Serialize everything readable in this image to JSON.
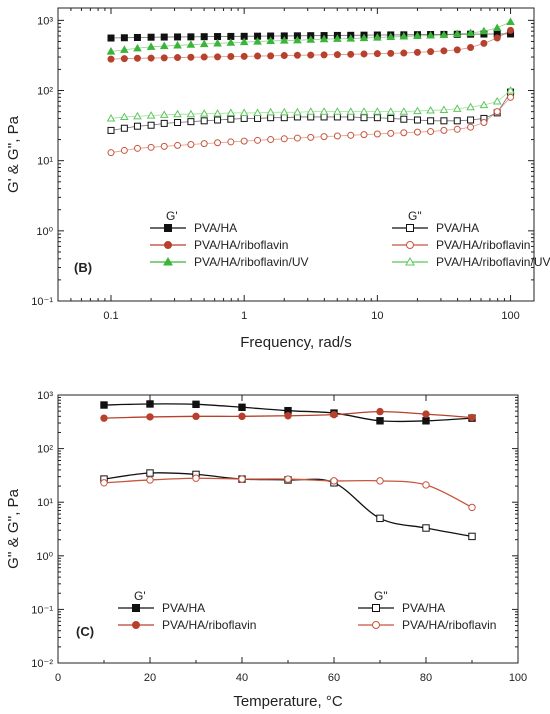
{
  "chart_data": [
    {
      "type": "scatter",
      "panel_label": "(B)",
      "xlabel": "Frequency, rad/s",
      "ylabel": "G' & G'', Pa",
      "xscale": "log",
      "yscale": "log",
      "xlim": [
        0.04,
        150
      ],
      "ylim": [
        0.1,
        1500
      ],
      "xticks": [
        0.1,
        1,
        10,
        100
      ],
      "xtick_labels": [
        "0.1",
        "1",
        "10",
        "100"
      ],
      "yticks": [
        0.1,
        1,
        10,
        100,
        1000
      ],
      "ytick_labels": [
        "10⁻¹",
        "10⁰",
        "10¹",
        "10²",
        "10³"
      ],
      "legend_headers": {
        "storage": "G'",
        "loss": "G\""
      },
      "legend_placement": "lower-center",
      "series": [
        {
          "name": "PVA/HA",
          "group": "G'",
          "marker": "square",
          "filled": true,
          "color": "#111111",
          "x": [
            0.1,
            0.126,
            0.158,
            0.2,
            0.251,
            0.316,
            0.398,
            0.501,
            0.631,
            0.794,
            1,
            1.26,
            1.58,
            2,
            2.51,
            3.16,
            3.98,
            5.01,
            6.31,
            7.94,
            10,
            12.6,
            15.8,
            20,
            25.1,
            31.6,
            39.8,
            50.1,
            63.1,
            79.4,
            100
          ],
          "y": [
            560,
            565,
            570,
            575,
            578,
            580,
            582,
            585,
            588,
            590,
            592,
            595,
            598,
            600,
            602,
            605,
            607,
            610,
            612,
            615,
            618,
            620,
            622,
            625,
            628,
            630,
            633,
            635,
            638,
            640,
            640
          ]
        },
        {
          "name": "PVA/HA/riboflavin",
          "group": "G'",
          "marker": "circle",
          "filled": true,
          "color": "#b7412c",
          "x": [
            0.1,
            0.126,
            0.158,
            0.2,
            0.251,
            0.316,
            0.398,
            0.501,
            0.631,
            0.794,
            1,
            1.26,
            1.58,
            2,
            2.51,
            3.16,
            3.98,
            5.01,
            6.31,
            7.94,
            10,
            12.6,
            15.8,
            20,
            25.1,
            31.6,
            39.8,
            50.1,
            63.1,
            79.4,
            100
          ],
          "y": [
            280,
            285,
            288,
            290,
            292,
            295,
            298,
            300,
            302,
            305,
            307,
            310,
            312,
            315,
            318,
            320,
            322,
            325,
            328,
            332,
            335,
            338,
            342,
            350,
            358,
            368,
            380,
            410,
            470,
            560,
            720
          ]
        },
        {
          "name": "PVA/HA/riboflavin/UV",
          "group": "G'",
          "marker": "triangle",
          "filled": true,
          "color": "#3ab53a",
          "x": [
            0.1,
            0.126,
            0.158,
            0.2,
            0.251,
            0.316,
            0.398,
            0.501,
            0.631,
            0.794,
            1,
            1.26,
            1.58,
            2,
            2.51,
            3.16,
            3.98,
            5.01,
            6.31,
            7.94,
            10,
            12.6,
            15.8,
            20,
            25.1,
            31.6,
            39.8,
            50.1,
            63.1,
            79.4,
            100
          ],
          "y": [
            360,
            380,
            400,
            420,
            430,
            440,
            450,
            460,
            470,
            480,
            490,
            500,
            510,
            515,
            520,
            530,
            540,
            545,
            550,
            560,
            570,
            580,
            590,
            600,
            610,
            620,
            640,
            660,
            700,
            780,
            950
          ]
        },
        {
          "name": "PVA/HA",
          "group": "G\"",
          "marker": "square",
          "filled": false,
          "color": "#111111",
          "x": [
            0.1,
            0.126,
            0.158,
            0.2,
            0.251,
            0.316,
            0.398,
            0.501,
            0.631,
            0.794,
            1,
            1.26,
            1.58,
            2,
            2.51,
            3.16,
            3.98,
            5.01,
            6.31,
            7.94,
            10,
            12.6,
            15.8,
            20,
            25.1,
            31.6,
            39.8,
            50.1,
            63.1,
            79.4,
            100
          ],
          "y": [
            27,
            29,
            31,
            32,
            34,
            35,
            36,
            37,
            38,
            39,
            40,
            40,
            41,
            41,
            42,
            42,
            42,
            42,
            42,
            41,
            41,
            40,
            39,
            38,
            37,
            37,
            37,
            38,
            40,
            48,
            95
          ]
        },
        {
          "name": "PVA/HA/riboflavin",
          "group": "G\"",
          "marker": "circle",
          "filled": false,
          "color": "#c8553d",
          "x": [
            0.1,
            0.126,
            0.158,
            0.2,
            0.251,
            0.316,
            0.398,
            0.501,
            0.631,
            0.794,
            1,
            1.26,
            1.58,
            2,
            2.51,
            3.16,
            3.98,
            5.01,
            6.31,
            7.94,
            10,
            12.6,
            15.8,
            20,
            25.1,
            31.6,
            39.8,
            50.1,
            63.1,
            79.4,
            100
          ],
          "y": [
            13,
            14,
            15,
            15.5,
            16,
            16.5,
            17,
            17.5,
            18,
            18.5,
            19,
            19.5,
            20,
            20.5,
            21,
            21.5,
            22,
            22.5,
            23,
            23.5,
            24,
            24.5,
            25,
            25.5,
            26,
            27,
            28,
            30,
            35,
            50,
            80
          ]
        },
        {
          "name": "PVA/HA/riboflavin/UV",
          "group": "G\"",
          "marker": "triangle",
          "filled": false,
          "color": "#5cc85c",
          "x": [
            0.1,
            0.126,
            0.158,
            0.2,
            0.251,
            0.316,
            0.398,
            0.501,
            0.631,
            0.794,
            1,
            1.26,
            1.58,
            2,
            2.51,
            3.16,
            3.98,
            5.01,
            6.31,
            7.94,
            10,
            12.6,
            15.8,
            20,
            25.1,
            31.6,
            39.8,
            50.1,
            63.1,
            79.4,
            100
          ],
          "y": [
            40,
            42,
            43,
            44,
            45,
            46,
            46,
            47,
            47,
            48,
            48,
            48,
            49,
            49,
            49,
            50,
            50,
            50,
            50,
            50,
            50,
            50,
            50,
            51,
            52,
            53,
            55,
            58,
            62,
            70,
            100
          ]
        }
      ]
    },
    {
      "type": "line",
      "panel_label": "(C)",
      "xlabel": "Temperature, °C",
      "ylabel": "G'' & G'', Pa",
      "xscale": "linear",
      "yscale": "log",
      "xlim": [
        0,
        100
      ],
      "ylim": [
        0.01,
        1000
      ],
      "xticks": [
        0,
        20,
        40,
        60,
        80,
        100
      ],
      "xtick_labels": [
        "0",
        "20",
        "40",
        "60",
        "80",
        "100"
      ],
      "yticks": [
        0.01,
        0.1,
        1,
        10,
        100,
        1000
      ],
      "ytick_labels": [
        "10⁻²",
        "10⁻¹",
        "10⁰",
        "10¹",
        "10²",
        "10³"
      ],
      "legend_headers": {
        "storage": "G'",
        "loss": "G\""
      },
      "legend_placement": "lower-center",
      "series": [
        {
          "name": "PVA/HA",
          "group": "G'",
          "marker": "square",
          "filled": true,
          "color": "#111111",
          "x": [
            10,
            20,
            30,
            40,
            50,
            60,
            70,
            80,
            90
          ],
          "y": [
            650,
            680,
            670,
            590,
            510,
            460,
            330,
            330,
            370
          ]
        },
        {
          "name": "PVA/HA/riboflavin",
          "group": "G'",
          "marker": "circle",
          "filled": true,
          "color": "#b7412c",
          "x": [
            10,
            20,
            30,
            40,
            50,
            60,
            70,
            80,
            90
          ],
          "y": [
            370,
            390,
            400,
            400,
            410,
            430,
            490,
            440,
            380
          ]
        },
        {
          "name": "PVA/HA",
          "group": "G\"",
          "marker": "square",
          "filled": false,
          "color": "#111111",
          "x": [
            10,
            20,
            30,
            40,
            50,
            60,
            70,
            80,
            90
          ],
          "y": [
            27,
            35,
            33,
            27,
            26,
            23,
            5,
            3.3,
            2.3
          ]
        },
        {
          "name": "PVA/HA/riboflavin",
          "group": "G\"",
          "marker": "circle",
          "filled": false,
          "color": "#c8553d",
          "x": [
            10,
            20,
            30,
            40,
            50,
            60,
            70,
            80,
            90
          ],
          "y": [
            23,
            26,
            28,
            27,
            27,
            25,
            25,
            21,
            8
          ]
        }
      ]
    }
  ]
}
